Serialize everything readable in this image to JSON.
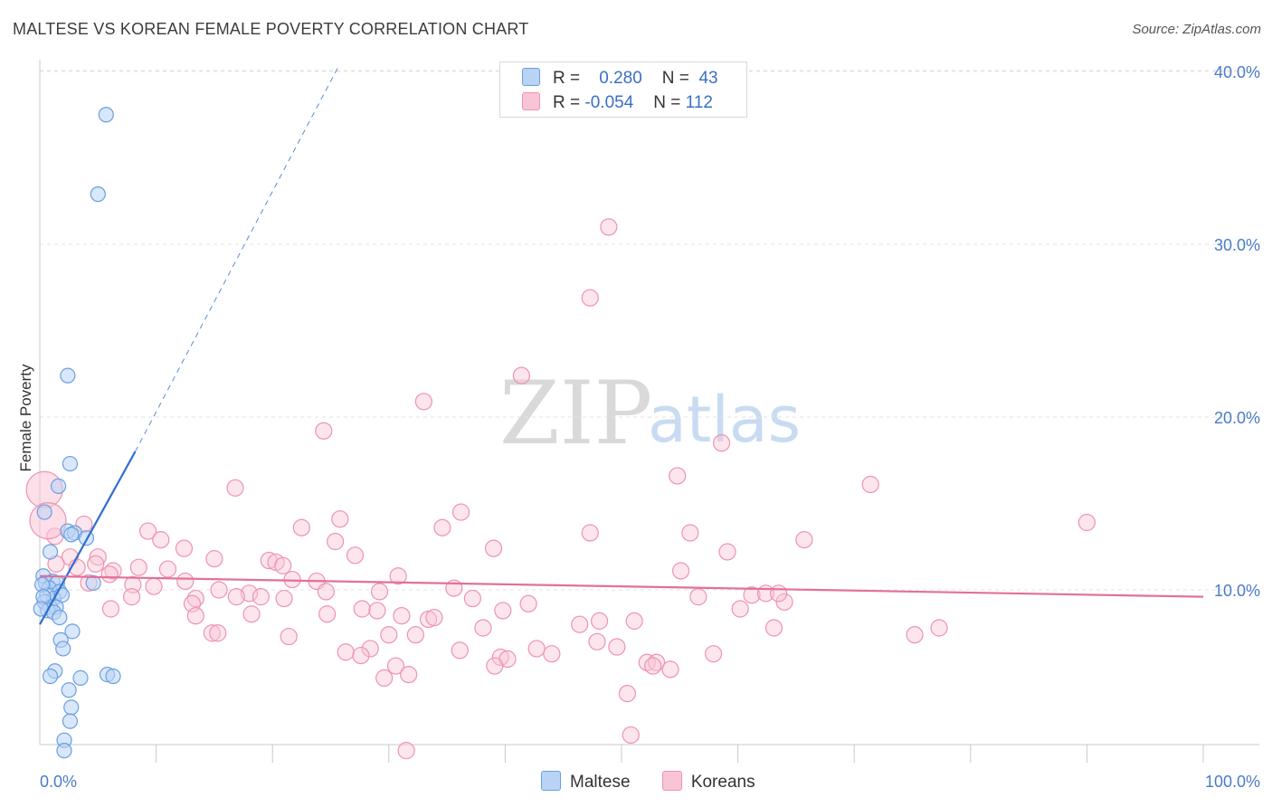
{
  "header": {
    "title": "MALTESE VS KOREAN FEMALE POVERTY CORRELATION CHART",
    "source": "Source: ZipAtlas.com"
  },
  "legend": {
    "maltese": {
      "r_label": "R =",
      "r_value": "0.280",
      "n_label": "N =",
      "n_value": "43"
    },
    "koreans": {
      "r_label": "R =",
      "r_value": "-0.054",
      "n_label": "N =",
      "n_value": "112"
    }
  },
  "bottom_legend": {
    "maltese": "Maltese",
    "koreans": "Koreans"
  },
  "watermark": {
    "zip": "ZIP",
    "atlas": "atlas"
  },
  "colors": {
    "maltese_fill": "#b9d3f5",
    "maltese_stroke": "#6a9fe0",
    "maltese_line": "#2f6fd1",
    "koreans_fill": "#f9c5d6",
    "koreans_stroke": "#ee93b0",
    "koreans_line": "#e2709a"
  },
  "chart_data": {
    "type": "scatter",
    "title": "MALTESE VS KOREAN FEMALE POVERTY CORRELATION CHART",
    "xlabel": "",
    "ylabel": "Female Poverty",
    "xlim": [
      0,
      100
    ],
    "ylim": [
      0,
      41
    ],
    "x_tick_labels": [
      "0.0%",
      "100.0%"
    ],
    "y_ticks": [
      10,
      20,
      30,
      40
    ],
    "y_tick_labels": [
      "10.0%",
      "20.0%",
      "30.0%",
      "40.0%"
    ],
    "grid": true,
    "legend_position": "top-center",
    "series": [
      {
        "name": "Maltese",
        "r": 0.28,
        "n": 43,
        "trend": {
          "x0": 0,
          "y0": 8.0,
          "x1": 8.2,
          "y1": 18.0,
          "dashed_to_x": 25.6,
          "dashed_to_y": 40.2
        },
        "points": [
          [
            5.7,
            37.5
          ],
          [
            5.0,
            32.9
          ],
          [
            2.4,
            22.4
          ],
          [
            2.6,
            17.3
          ],
          [
            1.6,
            16.0
          ],
          [
            0.4,
            14.5
          ],
          [
            2.4,
            13.4
          ],
          [
            3.0,
            13.3
          ],
          [
            2.7,
            13.2
          ],
          [
            4.0,
            13.0
          ],
          [
            0.9,
            12.2
          ],
          [
            0.3,
            10.8
          ],
          [
            0.5,
            10.4
          ],
          [
            1.1,
            10.5
          ],
          [
            1.5,
            10.4
          ],
          [
            0.8,
            10.1
          ],
          [
            1.7,
            9.9
          ],
          [
            4.6,
            10.4
          ],
          [
            0.6,
            9.7
          ],
          [
            1.2,
            9.5
          ],
          [
            1.9,
            9.7
          ],
          [
            0.4,
            9.3
          ],
          [
            0.9,
            9.0
          ],
          [
            1.4,
            9.0
          ],
          [
            0.7,
            8.8
          ],
          [
            1.2,
            8.7
          ],
          [
            1.7,
            8.4
          ],
          [
            2.8,
            7.6
          ],
          [
            1.8,
            7.1
          ],
          [
            2.0,
            6.6
          ],
          [
            1.3,
            5.3
          ],
          [
            0.9,
            5.0
          ],
          [
            3.5,
            4.9
          ],
          [
            5.8,
            5.1
          ],
          [
            6.3,
            5.0
          ],
          [
            2.5,
            4.2
          ],
          [
            2.7,
            3.2
          ],
          [
            2.6,
            2.4
          ],
          [
            2.1,
            1.3
          ],
          [
            2.1,
            0.7
          ],
          [
            0.2,
            10.3
          ],
          [
            0.3,
            9.6
          ],
          [
            0.1,
            8.9
          ]
        ]
      },
      {
        "name": "Koreans",
        "r": -0.054,
        "n": 112,
        "trend": {
          "x0": 0,
          "y0": 10.8,
          "x1": 100,
          "y1": 9.6
        },
        "points": [
          [
            48.9,
            31.0
          ],
          [
            47.3,
            26.9
          ],
          [
            41.4,
            22.4
          ],
          [
            33.0,
            20.9
          ],
          [
            24.4,
            19.2
          ],
          [
            58.6,
            18.5
          ],
          [
            54.8,
            16.6
          ],
          [
            71.4,
            16.1
          ],
          [
            16.8,
            15.9
          ],
          [
            36.2,
            14.5
          ],
          [
            25.8,
            14.1
          ],
          [
            34.6,
            13.6
          ],
          [
            22.5,
            13.6
          ],
          [
            3.8,
            13.8
          ],
          [
            9.3,
            13.4
          ],
          [
            90.0,
            13.9
          ],
          [
            47.3,
            13.3
          ],
          [
            55.9,
            13.3
          ],
          [
            65.7,
            12.9
          ],
          [
            10.4,
            12.9
          ],
          [
            25.4,
            12.8
          ],
          [
            39.0,
            12.4
          ],
          [
            12.4,
            12.4
          ],
          [
            59.1,
            12.2
          ],
          [
            15.0,
            11.8
          ],
          [
            27.1,
            12.0
          ],
          [
            5.0,
            11.9
          ],
          [
            19.7,
            11.7
          ],
          [
            20.3,
            11.6
          ],
          [
            2.6,
            11.9
          ],
          [
            1.4,
            11.5
          ],
          [
            3.2,
            11.3
          ],
          [
            8.5,
            11.3
          ],
          [
            6.3,
            11.1
          ],
          [
            11.0,
            11.2
          ],
          [
            55.1,
            11.1
          ],
          [
            30.8,
            10.8
          ],
          [
            6.0,
            10.9
          ],
          [
            12.5,
            10.5
          ],
          [
            21.7,
            10.6
          ],
          [
            23.8,
            10.5
          ],
          [
            8.0,
            10.3
          ],
          [
            35.6,
            10.1
          ],
          [
            15.4,
            10.0
          ],
          [
            9.8,
            10.2
          ],
          [
            4.2,
            10.4
          ],
          [
            29.2,
            9.9
          ],
          [
            24.6,
            9.9
          ],
          [
            18.0,
            9.8
          ],
          [
            13.4,
            9.5
          ],
          [
            7.9,
            9.6
          ],
          [
            16.9,
            9.6
          ],
          [
            19.0,
            9.6
          ],
          [
            21.0,
            9.5
          ],
          [
            37.2,
            9.5
          ],
          [
            56.6,
            9.6
          ],
          [
            61.2,
            9.7
          ],
          [
            62.4,
            9.8
          ],
          [
            64.0,
            9.3
          ],
          [
            42.0,
            9.2
          ],
          [
            13.1,
            9.2
          ],
          [
            6.1,
            8.9
          ],
          [
            27.7,
            8.9
          ],
          [
            29.0,
            8.8
          ],
          [
            39.8,
            8.8
          ],
          [
            18.2,
            8.6
          ],
          [
            24.7,
            8.6
          ],
          [
            31.1,
            8.5
          ],
          [
            33.4,
            8.3
          ],
          [
            13.4,
            8.5
          ],
          [
            33.9,
            8.4
          ],
          [
            60.2,
            8.9
          ],
          [
            48.1,
            8.2
          ],
          [
            51.1,
            8.2
          ],
          [
            46.4,
            8.0
          ],
          [
            38.1,
            7.8
          ],
          [
            63.1,
            7.8
          ],
          [
            77.3,
            7.8
          ],
          [
            75.2,
            7.4
          ],
          [
            14.8,
            7.5
          ],
          [
            15.3,
            7.5
          ],
          [
            21.4,
            7.3
          ],
          [
            30.0,
            7.4
          ],
          [
            32.3,
            7.4
          ],
          [
            47.9,
            7.0
          ],
          [
            49.6,
            6.7
          ],
          [
            36.1,
            6.5
          ],
          [
            26.3,
            6.4
          ],
          [
            28.4,
            6.6
          ],
          [
            42.7,
            6.6
          ],
          [
            44.0,
            6.3
          ],
          [
            57.9,
            6.3
          ],
          [
            27.6,
            6.2
          ],
          [
            39.6,
            6.1
          ],
          [
            40.2,
            6.0
          ],
          [
            52.2,
            5.8
          ],
          [
            53.0,
            5.8
          ],
          [
            54.2,
            5.4
          ],
          [
            30.6,
            5.6
          ],
          [
            39.1,
            5.6
          ],
          [
            29.6,
            4.9
          ],
          [
            50.5,
            4.0
          ],
          [
            50.8,
            1.6
          ],
          [
            31.5,
            0.7
          ],
          [
            0.4,
            15.8
          ],
          [
            1.3,
            13.1
          ],
          [
            0.7,
            14.0
          ],
          [
            52.7,
            5.6
          ],
          [
            63.5,
            9.8
          ],
          [
            4.8,
            11.5
          ],
          [
            31.7,
            5.1
          ],
          [
            20.9,
            11.4
          ]
        ]
      }
    ]
  }
}
